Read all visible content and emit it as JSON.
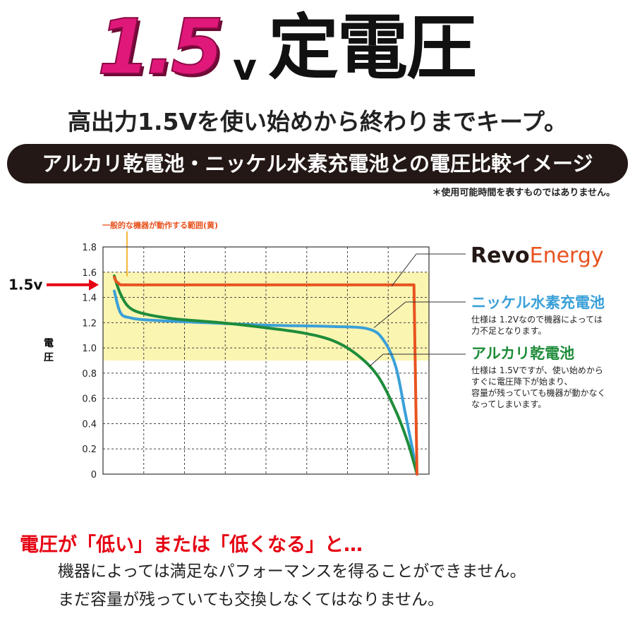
{
  "header": {
    "hero_number": "1.5",
    "hero_unit": "v",
    "hero_kanji": "定電圧",
    "subtitle": "高出力1.5Vを使い始めから終わりまでキープ。",
    "banner": "アルカリ乾電池・ニッケル水素充電池との電圧比較イメージ",
    "note": "＊使用可能時間を表すものではありません。"
  },
  "footer": {
    "warning_title": "電圧が「低い」または「低くなる」と…",
    "line1": "機器によっては満足なパフォーマンスを得ることができません。",
    "line2": "まだ容量が残っていても交換しなくてはなりません。"
  },
  "chart_data": {
    "type": "line",
    "ylabel": "電圧",
    "ylim": [
      0,
      1.8
    ],
    "y_ticks": [
      "1.8",
      "1.6",
      "1.4",
      "1.2",
      "1.0",
      "0.8",
      "0.6",
      "0.4",
      "0.2",
      "0"
    ],
    "grid": true,
    "highlight_band": {
      "label": "一般的な機器が動作する範囲(黄)",
      "from": 0.9,
      "to": 1.6,
      "color": "#fbf5b2"
    },
    "marker": {
      "label": "1.5v",
      "value": 1.5,
      "color": "#e60012"
    },
    "series": [
      {
        "name": "Revo Energy",
        "name_part1": "Revo",
        "name_part2": "Energy",
        "color": "#e8531f",
        "x": [
          0,
          0.005,
          0.02,
          0.7,
          0.99,
          1.0
        ],
        "values": [
          1.56,
          1.53,
          1.5,
          1.5,
          1.5,
          0.0
        ]
      },
      {
        "name": "ニッケル水素充電池",
        "color": "#3aa0d8",
        "description": [
          "仕様は 1.2Vなので機器によっては",
          "力不足となります。"
        ],
        "x": [
          0,
          0.02,
          0.05,
          0.12,
          0.3,
          0.5,
          0.72,
          0.84,
          0.89,
          0.93,
          0.96,
          0.985,
          1.0
        ],
        "values": [
          1.45,
          1.28,
          1.24,
          1.22,
          1.2,
          1.18,
          1.17,
          1.15,
          1.06,
          0.85,
          0.5,
          0.2,
          0.0
        ]
      },
      {
        "name": "アルカリ乾電池",
        "color": "#1e8c3a",
        "description": [
          "仕様は 1.5Vですが、使い始めから",
          "すぐに電圧降下が始まり、",
          "容量が残っていても機器が動かなく",
          "なってしまいます。"
        ],
        "x": [
          0,
          0.02,
          0.05,
          0.1,
          0.2,
          0.35,
          0.5,
          0.62,
          0.72,
          0.8,
          0.87,
          0.93,
          0.97,
          1.0
        ],
        "values": [
          1.57,
          1.43,
          1.32,
          1.27,
          1.23,
          1.2,
          1.16,
          1.12,
          1.06,
          0.95,
          0.78,
          0.5,
          0.25,
          0.0
        ]
      }
    ]
  }
}
